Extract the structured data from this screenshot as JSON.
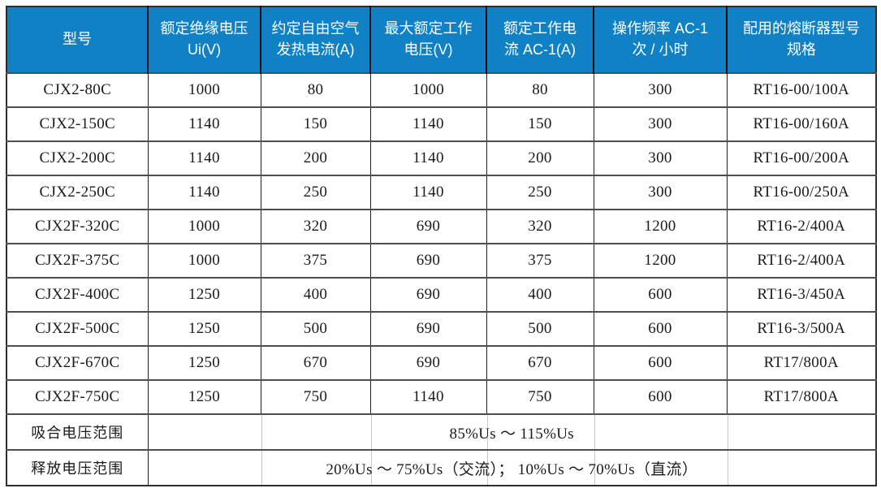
{
  "table": {
    "title": "contactor-specification-table",
    "colors": {
      "header_bg": "#1081C4",
      "header_text": "#FFFFFF",
      "body_text": "#1A1A1A"
    },
    "header": [
      "型号",
      "额定绝缘电压 Ui(V)",
      "约定自由空气发热电流(A)",
      "最大额定工作电压(V)",
      "额定工作电流 AC-1(A)",
      "操作频率 AC-1 次 / 小时",
      "配用的熔断器型号规格"
    ],
    "rows": [
      [
        "CJX2-80C",
        "1000",
        "80",
        "1000",
        "80",
        "300",
        "RT16-00/100A"
      ],
      [
        "CJX2-150C",
        "1140",
        "150",
        "1140",
        "150",
        "300",
        "RT16-00/160A"
      ],
      [
        "CJX2-200C",
        "1140",
        "200",
        "1140",
        "200",
        "300",
        "RT16-00/200A"
      ],
      [
        "CJX2-250C",
        "1140",
        "250",
        "1140",
        "250",
        "300",
        "RT16-00/250A"
      ],
      [
        "CJX2F-320C",
        "1000",
        "320",
        "690",
        "320",
        "1200",
        "RT16-2/400A"
      ],
      [
        "CJX2F-375C",
        "1000",
        "375",
        "690",
        "375",
        "1200",
        "RT16-2/400A"
      ],
      [
        "CJX2F-400C",
        "1250",
        "400",
        "690",
        "400",
        "600",
        "RT16-3/450A"
      ],
      [
        "CJX2F-500C",
        "1250",
        "500",
        "690",
        "500",
        "600",
        "RT16-3/500A"
      ],
      [
        "CJX2F-670C",
        "1250",
        "670",
        "690",
        "670",
        "600",
        "RT17/800A"
      ],
      [
        "CJX2F-750C",
        "1250",
        "750",
        "1140",
        "750",
        "600",
        "RT17/800A"
      ]
    ],
    "footer": [
      {
        "label": "吸合电压范围",
        "value": "85%Us ～ 115%Us"
      },
      {
        "label": "释放电压范围",
        "value": "20%Us ～ 75%Us（交流）； 10%Us ～ 70%Us（直流）"
      }
    ]
  }
}
